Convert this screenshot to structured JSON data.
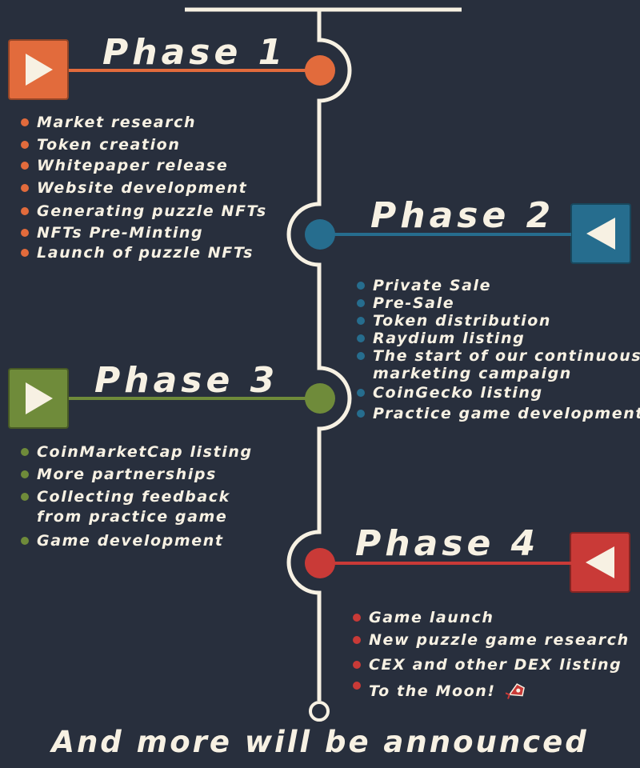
{
  "colors": {
    "background": "#282f3d",
    "line": "#f7f1e3",
    "phase1": "#e26b3c",
    "phase2": "#266d8e",
    "phase3": "#6f8b3a",
    "phase4": "#c93a37"
  },
  "phases": [
    {
      "title": "Phase 1",
      "button_icon": "play-right-icon",
      "items": [
        "Market research",
        "Token creation",
        "Whitepaper release",
        "Website development",
        "Generating puzzle NFTs",
        "NFTs Pre-Minting",
        "Launch of puzzle NFTs"
      ]
    },
    {
      "title": "Phase 2",
      "button_icon": "play-left-icon",
      "items": [
        "Private Sale",
        "Pre-Sale",
        "Token distribution",
        "Raydium listing",
        "The start of our continuous",
        "marketing campaign",
        "CoinGecko listing",
        "Practice game development"
      ]
    },
    {
      "title": "Phase 3",
      "button_icon": "play-right-icon",
      "items": [
        "CoinMarketCap listing",
        "More partnerships",
        "Collecting feedback",
        "from practice game",
        "Game development"
      ]
    },
    {
      "title": "Phase 4",
      "button_icon": "play-left-icon",
      "items": [
        "Game launch",
        "New puzzle game research",
        "CEX and other DEX listing",
        "To the Moon!"
      ],
      "last_item_icon": "rocket-icon"
    }
  ],
  "footer": "And more will be announced"
}
